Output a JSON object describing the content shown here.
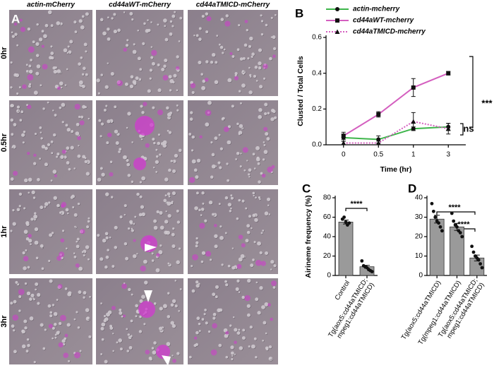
{
  "image_grid": {
    "label": "A",
    "columns": [
      "actin-mCherry",
      "cd44aWT-mCherry",
      "cd44aTMICD-mCherry"
    ],
    "rows": [
      "0hr",
      "0.5hr",
      "1hr",
      "3hr"
    ]
  },
  "chart_data": [
    {
      "type": "line",
      "panel_label": "B",
      "ylabel": "Clusted / Total Cells",
      "xlabel": "Time (hr)",
      "categories": [
        "0",
        "0.5",
        "1",
        "3"
      ],
      "ylim": [
        0,
        0.6
      ],
      "yticks": [
        {
          "value": 0,
          "label": "0.0"
        },
        0.2,
        0.4,
        0.6
      ],
      "series": [
        {
          "name": "actin-mcherry",
          "color": "#3db54a",
          "marker": "circle",
          "linestyle": "solid",
          "values": [
            0.04,
            0.03,
            0.09,
            0.1
          ],
          "errors": [
            0.02,
            0.02,
            0.01,
            0.02
          ]
        },
        {
          "name": "cd44aWT-mcherry",
          "color": "#d45fbf",
          "marker": "square",
          "linestyle": "solid",
          "values": [
            0.05,
            0.17,
            0.32,
            0.4
          ],
          "errors": [
            0.02,
            0.015,
            0.05,
            0.01
          ]
        },
        {
          "name": "cd44aTMICD-mcherry",
          "color": "#d45fbf",
          "marker": "triangle",
          "linestyle": "dotted",
          "values": [
            0.01,
            0.01,
            0.13,
            0.09
          ],
          "errors": [
            0.01,
            0.01,
            0.05,
            0.03
          ]
        }
      ],
      "annotations": [
        "***",
        "ns"
      ]
    },
    {
      "type": "bar",
      "panel_label": "C",
      "ylabel": "Airineme frequency (%)",
      "categories": [
        [
          "Control"
        ],
        [
          "Tg(aox5:cd44aTMICD;",
          "mpeg1:cd44aTMICD)"
        ]
      ],
      "values": [
        55,
        9
      ],
      "errors": [
        2,
        1.5
      ],
      "points": [
        [
          58,
          60,
          55,
          52,
          54
        ],
        [
          15,
          10,
          9,
          8,
          6,
          5,
          4
        ]
      ],
      "color": "#9a9a9a",
      "ylim": [
        0,
        80
      ],
      "yticks": [
        0,
        20,
        40,
        60,
        80
      ],
      "annotations": [
        "****"
      ]
    },
    {
      "type": "bar",
      "panel_label": "D",
      "categories": [
        [
          "Tg(aox5:cd44aTMICD)"
        ],
        [
          "Tg(mpeg1:cd44aTMICD)"
        ],
        [
          "Tg(aox5:cd44aTMICD;",
          "mpeg1:cd44aTMICD)"
        ]
      ],
      "values": [
        29,
        25,
        9
      ],
      "errors": [
        2,
        1.8,
        1.5
      ],
      "points": [
        [
          37,
          33,
          30,
          28,
          27,
          25,
          23
        ],
        [
          32,
          28,
          26,
          25,
          23,
          22,
          20
        ],
        [
          15,
          12,
          10,
          9,
          8,
          6,
          4
        ]
      ],
      "color": "#9a9a9a",
      "ylim": [
        0,
        40
      ],
      "yticks": [
        0,
        10,
        20,
        30,
        40
      ],
      "annotations": [
        "****",
        "****"
      ]
    }
  ]
}
